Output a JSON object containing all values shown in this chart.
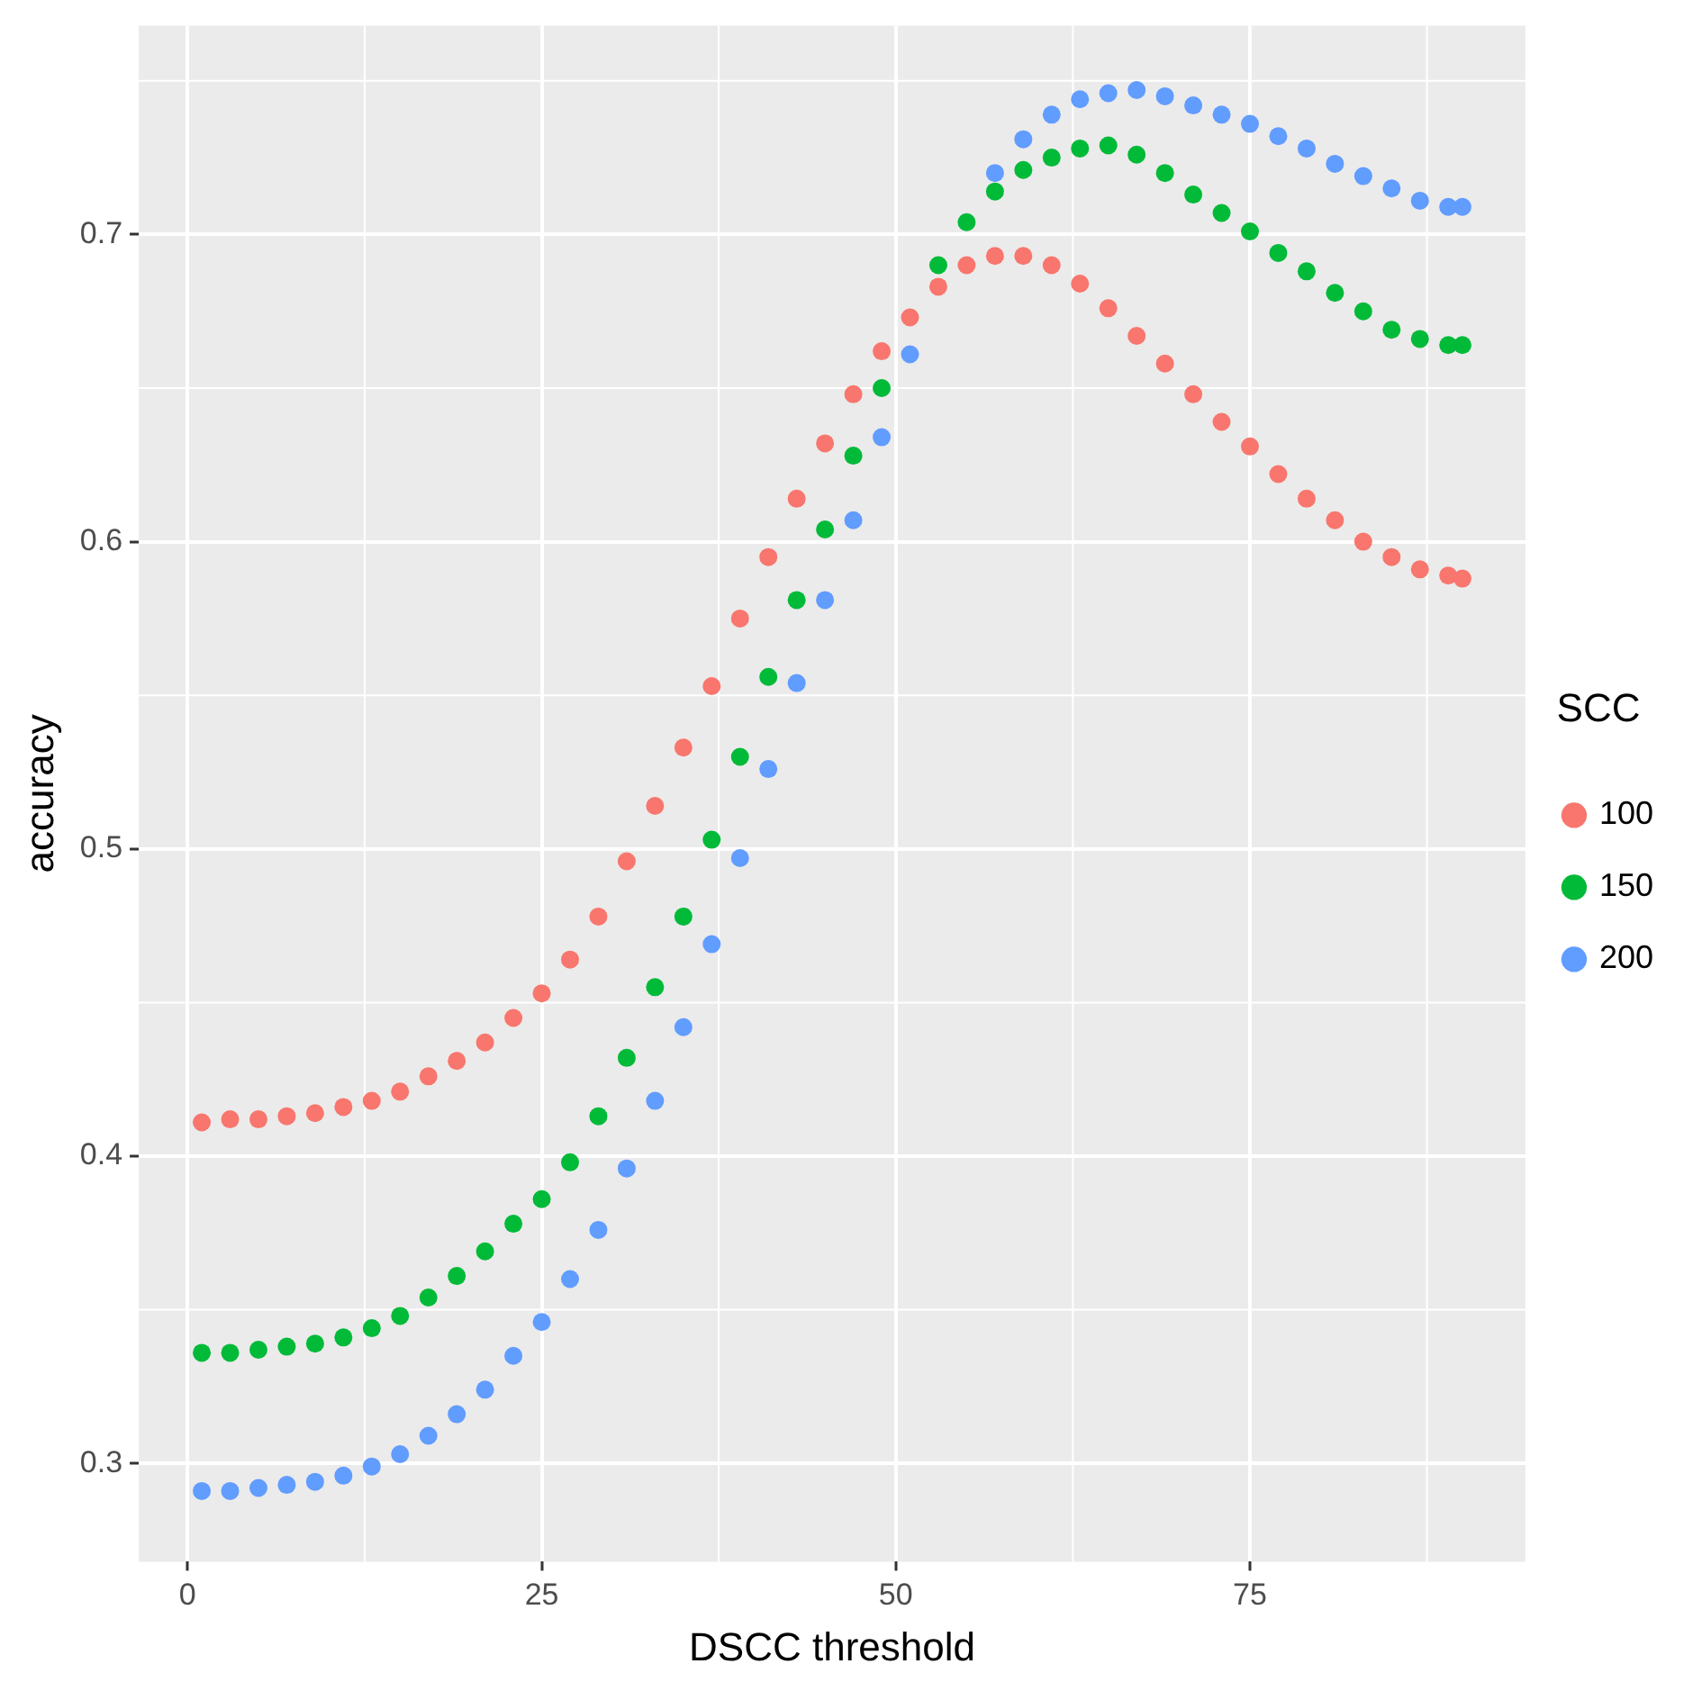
{
  "chart_data": {
    "type": "scatter",
    "xlabel": "DSCC threshold",
    "ylabel": "accuracy",
    "legend_title": "SCC",
    "legend": "right",
    "grid": true,
    "marker": "circle",
    "x": [
      1,
      3,
      5,
      7,
      9,
      11,
      13,
      15,
      17,
      19,
      21,
      23,
      25,
      27,
      29,
      31,
      33,
      35,
      37,
      39,
      41,
      43,
      45,
      47,
      49,
      51,
      53,
      55,
      57,
      59,
      61,
      63,
      65,
      67,
      69,
      71,
      73,
      75,
      77,
      79,
      81,
      83,
      85,
      87,
      89,
      90
    ],
    "xlim": [
      -3.45,
      94.45
    ],
    "xticks": [
      0,
      25,
      50,
      75
    ],
    "ylim": [
      0.268,
      0.768
    ],
    "yticks": [
      0.3,
      0.4,
      0.5,
      0.6,
      0.7
    ],
    "series": [
      {
        "name": "100",
        "color": "#f8766d",
        "values": [
          0.411,
          0.412,
          0.412,
          0.413,
          0.414,
          0.416,
          0.418,
          0.421,
          0.426,
          0.431,
          0.437,
          0.445,
          0.453,
          0.464,
          0.478,
          0.496,
          0.514,
          0.533,
          0.553,
          0.575,
          0.595,
          0.614,
          0.632,
          0.648,
          0.662,
          0.673,
          0.683,
          0.69,
          0.693,
          0.693,
          0.69,
          0.684,
          0.676,
          0.667,
          0.658,
          0.648,
          0.639,
          0.631,
          0.622,
          0.614,
          0.607,
          0.6,
          0.595,
          0.591,
          0.589,
          0.588
        ]
      },
      {
        "name": "150",
        "color": "#00ba38",
        "values": [
          0.336,
          0.336,
          0.337,
          0.338,
          0.339,
          0.341,
          0.344,
          0.348,
          0.354,
          0.361,
          0.369,
          0.378,
          0.386,
          0.398,
          0.413,
          0.432,
          0.455,
          0.478,
          0.503,
          0.53,
          0.556,
          0.581,
          0.604,
          0.628,
          0.65,
          null,
          0.69,
          0.704,
          0.714,
          0.721,
          0.725,
          0.728,
          0.729,
          0.726,
          0.72,
          0.713,
          0.707,
          0.701,
          0.694,
          0.688,
          0.681,
          0.675,
          0.669,
          0.666,
          0.664,
          0.664
        ]
      },
      {
        "name": "200",
        "color": "#619cff",
        "values": [
          0.291,
          0.291,
          0.292,
          0.293,
          0.294,
          0.296,
          0.299,
          0.303,
          0.309,
          0.316,
          0.324,
          0.335,
          0.346,
          0.36,
          0.376,
          0.396,
          0.418,
          0.442,
          0.469,
          0.497,
          0.526,
          0.554,
          0.581,
          0.607,
          0.634,
          0.661,
          null,
          null,
          0.72,
          0.731,
          0.739,
          0.744,
          0.746,
          0.747,
          0.745,
          0.742,
          0.739,
          0.736,
          0.732,
          0.728,
          0.723,
          0.719,
          0.715,
          0.711,
          0.709,
          0.709
        ]
      }
    ]
  }
}
